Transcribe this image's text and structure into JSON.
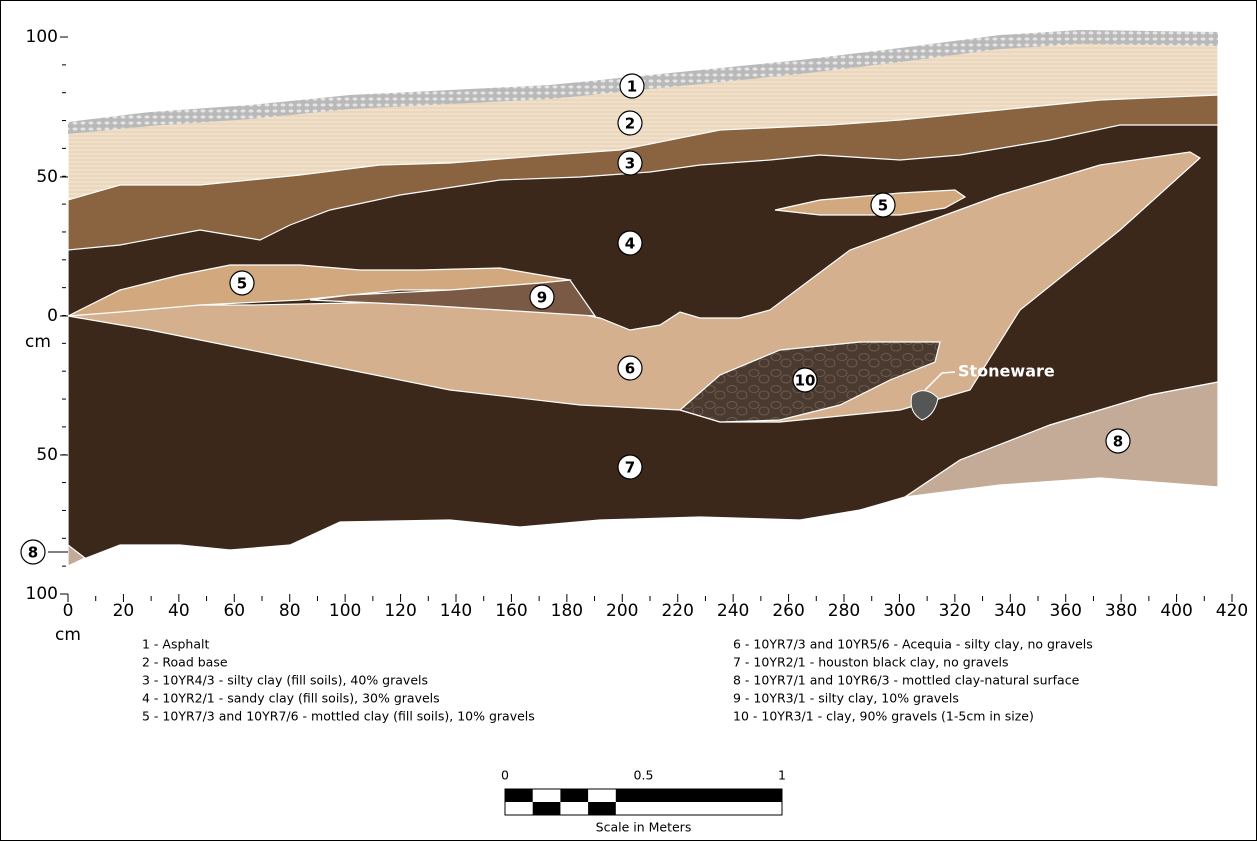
{
  "y_axis": {
    "labels": [
      "100",
      "50",
      "0",
      "50",
      "100"
    ],
    "unit": "cm"
  },
  "x_axis": {
    "labels": [
      "0",
      "20",
      "40",
      "60",
      "80",
      "100",
      "120",
      "140",
      "160",
      "180",
      "200",
      "220",
      "240",
      "260",
      "280",
      "300",
      "320",
      "340",
      "360",
      "380",
      "400",
      "420"
    ],
    "unit": "cm"
  },
  "layer_markers": [
    "1",
    "2",
    "3",
    "4",
    "5",
    "9",
    "5",
    "6",
    "10",
    "7",
    "8",
    "8"
  ],
  "annotation": "Stoneware",
  "legend": {
    "left": [
      "1 - Asphalt",
      "2 - Road base",
      "3 - 10YR4/3 - silty clay (fill soils), 40% gravels",
      "4 - 10YR2/1 - sandy clay (fill soils), 30% gravels",
      "5 - 10YR7/3 and 10YR7/6 - mottled clay (fill soils), 10% gravels"
    ],
    "right": [
      "6 - 10YR7/3 and 10YR5/6 - Acequia - silty clay, no gravels",
      "7 - 10YR2/1 - houston black clay, no gravels",
      "8 - 10YR7/1 and 10YR6/3 - mottled clay-natural surface",
      "9 - 10YR3/1 - silty clay, 10% gravels",
      "10 - 10YR3/1 - clay, 90% gravels (1-5cm in size)"
    ]
  },
  "scale_bar": {
    "labels": [
      "0",
      "0.5",
      "1"
    ],
    "caption": "Scale in Meters"
  }
}
